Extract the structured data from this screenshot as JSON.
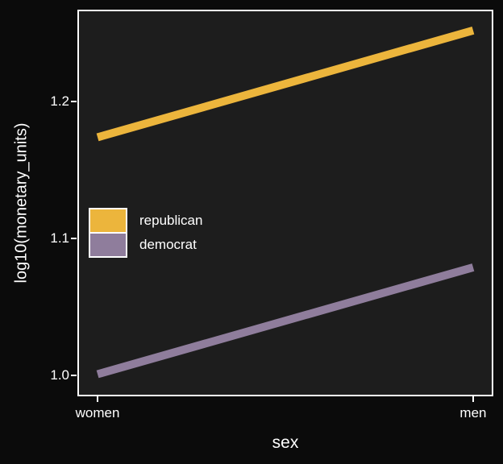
{
  "figure": {
    "background": "#0b0b0b",
    "panel_background": "#1d1d1d",
    "border_color": "#ffffff",
    "text_color": "#ffffff"
  },
  "axis": {
    "ylabel": "log10(monetary_units)",
    "xlabel": "sex",
    "ytick_labels": [
      "1.0",
      "1.1",
      "1.2"
    ],
    "xtick_labels": [
      "women",
      "men"
    ]
  },
  "chart_data": {
    "type": "line",
    "title": "",
    "x": [
      "women",
      "men"
    ],
    "series": [
      {
        "name": "republican",
        "color": "#ecb53c",
        "values": [
          1.174,
          1.252
        ]
      },
      {
        "name": "democrat",
        "color": "#8f7d9c",
        "values": [
          1.001,
          1.079
        ]
      }
    ],
    "xlabel": "sex",
    "ylabel": "log10(monetary_units)",
    "yticks": [
      1.0,
      1.1,
      1.2
    ],
    "ylim": [
      0.986,
      1.266
    ],
    "grid": false,
    "legend_position": "inside-left-middle",
    "line_width": 10
  }
}
